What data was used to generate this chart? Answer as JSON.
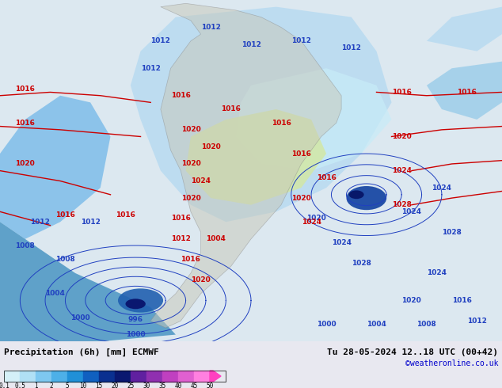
{
  "title_left": "Precipitation (6h) [mm] ECMWF",
  "title_right": "Tu 28-05-2024 12..18 UTC (00+42)",
  "credit": "©weatheronline.co.uk",
  "colorbar_levels": [
    0.1,
    0.5,
    1,
    2,
    5,
    10,
    15,
    20,
    25,
    30,
    35,
    40,
    45,
    50
  ],
  "colorbar_colors": [
    "#d4f0f8",
    "#b0e0f5",
    "#7ec8f0",
    "#4db0e8",
    "#2090d8",
    "#1060c0",
    "#0a3090",
    "#0a1870",
    "#6020a0",
    "#9030b0",
    "#c040c0",
    "#e060d0",
    "#ff80e0",
    "#ff40c0"
  ],
  "background_color": "#e8e8f0",
  "fig_width": 6.34,
  "fig_height": 4.9,
  "dpi": 100
}
